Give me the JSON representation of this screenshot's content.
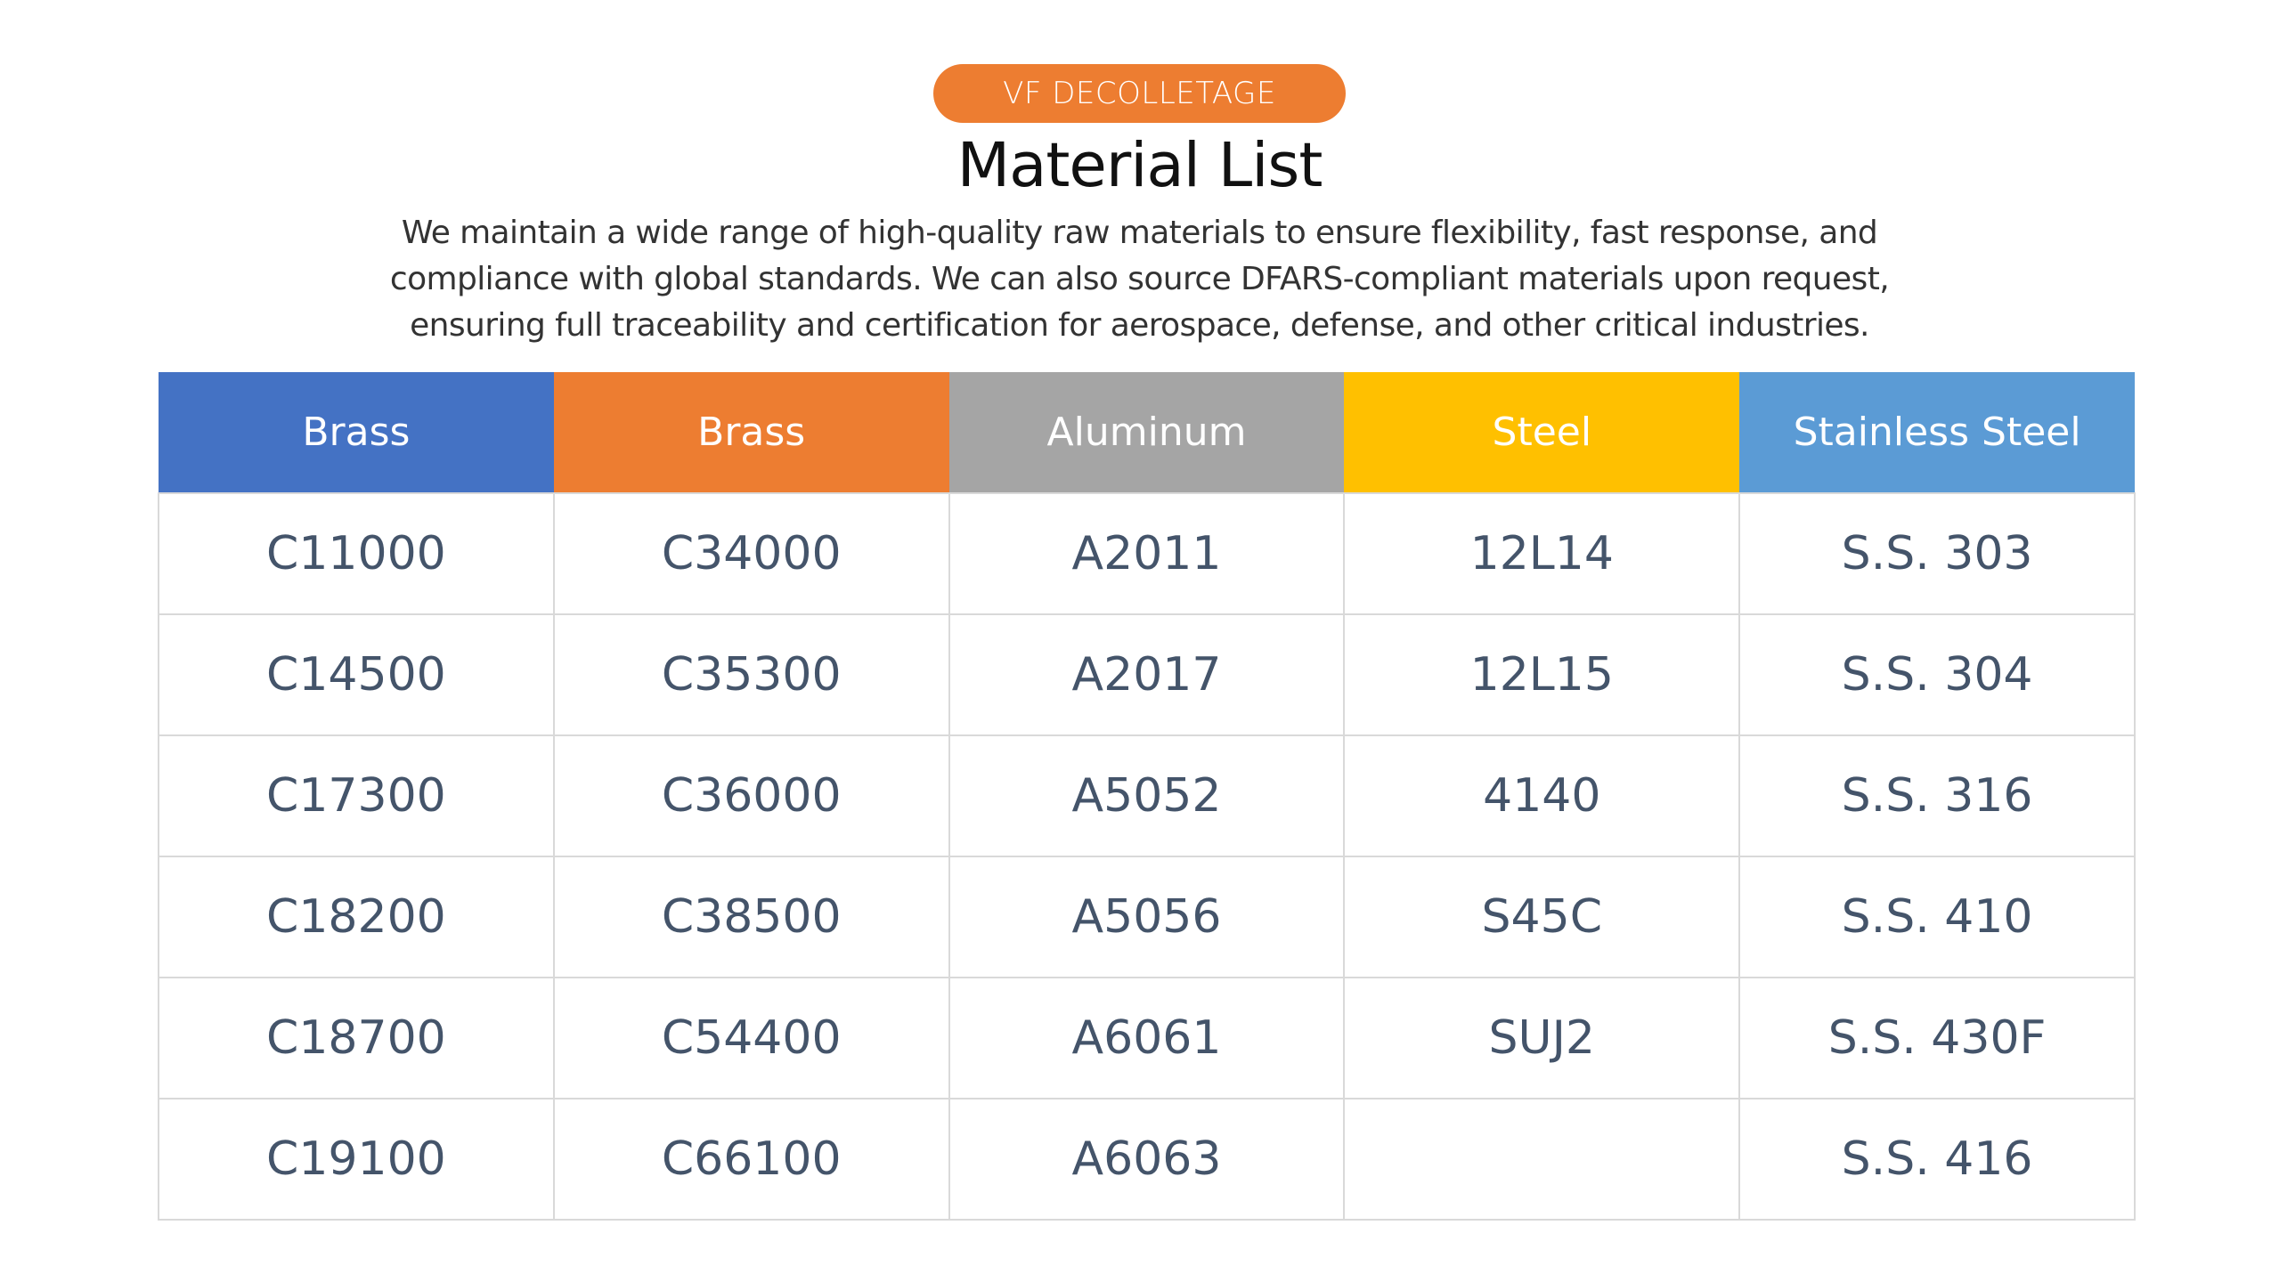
{
  "header": {
    "badge": "VF DECOLLETAGE",
    "title": "Material List",
    "description": "We maintain a wide range of high-quality raw materials to ensure flexibility, fast response, and compliance with global standards. We can also source DFARS-compliant materials upon request, ensuring full traceability and certification for aerospace, defense, and other critical industries."
  },
  "colors": {
    "badge_bg": "#ED7D31",
    "col1": "#4472C4",
    "col2": "#ED7D31",
    "col3": "#A5A5A5",
    "col4": "#FFC000",
    "col5": "#5B9BD5",
    "cell_text": "#44546A"
  },
  "table": {
    "headers": [
      "Brass",
      "Brass",
      "Aluminum",
      "Steel",
      "Stainless Steel"
    ],
    "rows": [
      [
        "C11000",
        "C34000",
        "A2011",
        "12L14",
        "S.S. 303"
      ],
      [
        "C14500",
        "C35300",
        "A2017",
        "12L15",
        "S.S. 304"
      ],
      [
        "C17300",
        "C36000",
        "A5052",
        "4140",
        "S.S. 316"
      ],
      [
        "C18200",
        "C38500",
        "A5056",
        "S45C",
        "S.S. 410"
      ],
      [
        "C18700",
        "C54400",
        "A6061",
        "SUJ2",
        "S.S. 430F"
      ],
      [
        "C19100",
        "C66100",
        "A6063",
        "",
        "S.S. 416"
      ]
    ]
  }
}
